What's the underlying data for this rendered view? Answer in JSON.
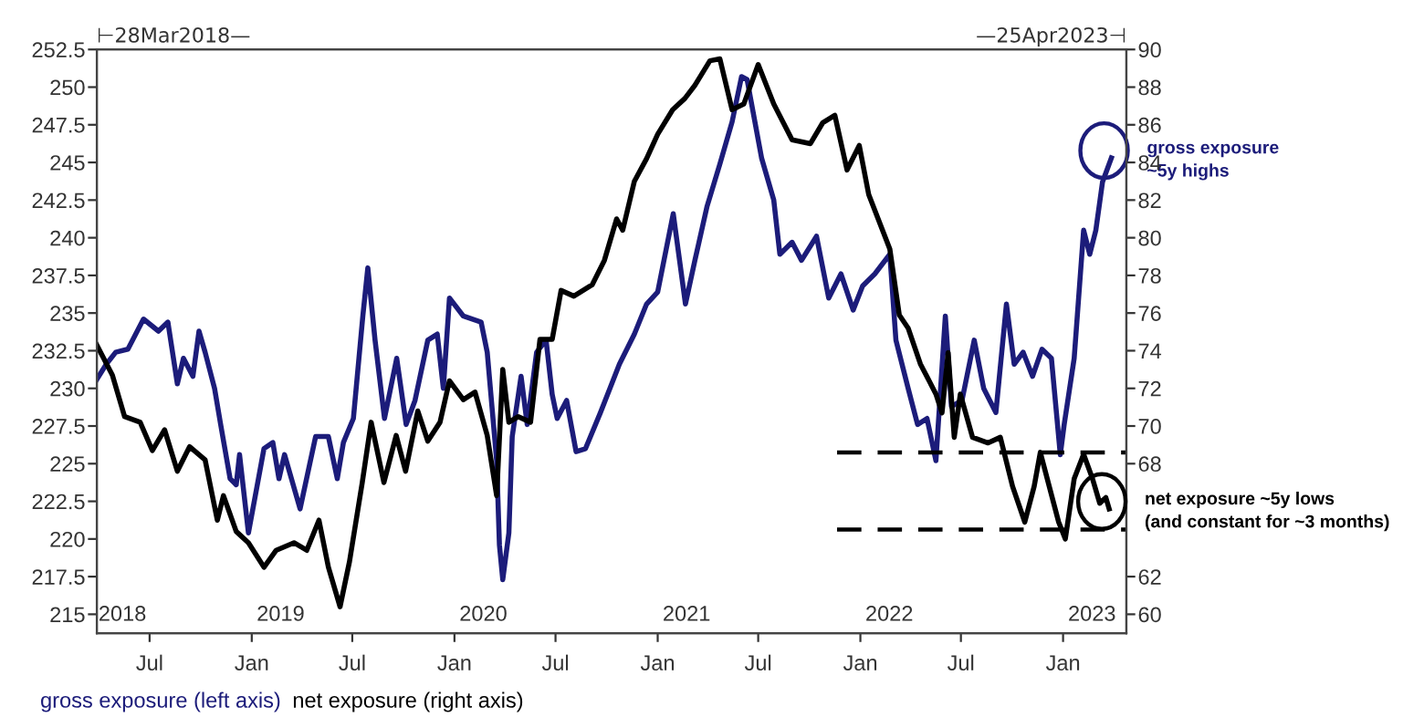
{
  "chart_data": {
    "type": "line",
    "xlim": [
      "2018-03-28",
      "2023-04-25"
    ],
    "xticks": [
      {
        "value": "2018-07-01",
        "label": "Jul"
      },
      {
        "value": "2019-01-01",
        "label": "Jan"
      },
      {
        "value": "2019-07-01",
        "label": "Jul"
      },
      {
        "value": "2020-01-01",
        "label": "Jan"
      },
      {
        "value": "2020-07-01",
        "label": "Jul"
      },
      {
        "value": "2021-01-01",
        "label": "Jan"
      },
      {
        "value": "2021-07-01",
        "label": "Jul"
      },
      {
        "value": "2022-01-01",
        "label": "Jan"
      },
      {
        "value": "2022-07-01",
        "label": "Jul"
      },
      {
        "value": "2023-01-01",
        "label": "Jan"
      }
    ],
    "ylim": [
      213.75,
      252.5
    ],
    "yticks": [
      215,
      217.5,
      220,
      222.5,
      225,
      227.5,
      230,
      232.5,
      235,
      237.5,
      240,
      242.5,
      245,
      247.5,
      250,
      252.5
    ],
    "y2lim": [
      59,
      90
    ],
    "y2ticks": [
      60,
      62,
      68,
      70,
      72,
      74,
      76,
      78,
      80,
      82,
      84,
      86,
      88,
      90
    ],
    "x2lim": [
      "2018-03-28",
      "2023-04-25"
    ],
    "x2ticks": [
      {
        "value": "2018-05-13",
        "label": "2018"
      },
      {
        "value": "2019-02-22",
        "label": "2019"
      },
      {
        "value": "2020-02-22",
        "label": "2020"
      },
      {
        "value": "2021-02-22",
        "label": "2021"
      },
      {
        "value": "2022-02-22",
        "label": "2022"
      },
      {
        "value": "2023-02-22",
        "label": "2023"
      }
    ],
    "legend": "bottom left",
    "grid": false,
    "series": [
      {
        "name": "gross exposure (left axis)",
        "color": "#1c1c7a",
        "x": [
          "2018-03-28",
          "2018-04-14",
          "2018-05-01",
          "2018-05-23",
          "2018-06-20",
          "2018-07-17",
          "2018-08-03",
          "2018-08-20",
          "2018-08-31",
          "2018-09-17",
          "2018-09-28",
          "2018-10-09",
          "2018-10-26",
          "2018-11-06",
          "2018-11-23",
          "2018-12-04",
          "2018-12-10",
          "2018-12-26",
          "2019-01-23",
          "2019-02-08",
          "2019-02-19",
          "2019-03-01",
          "2019-03-29",
          "2019-04-26",
          "2019-05-19",
          "2019-06-04",
          "2019-06-15",
          "2019-07-03",
          "2019-07-20",
          "2019-07-29",
          "2019-08-11",
          "2019-08-28",
          "2019-09-19",
          "2019-10-06",
          "2019-10-22",
          "2019-11-14",
          "2019-12-01",
          "2019-12-12",
          "2019-12-23",
          "2020-01-17",
          "2020-02-18",
          "2020-02-29",
          "2020-03-17",
          "2020-03-22",
          "2020-03-28",
          "2020-04-08",
          "2020-04-14",
          "2020-04-30",
          "2020-05-11",
          "2020-05-28",
          "2020-06-14",
          "2020-06-25",
          "2020-07-04",
          "2020-07-21",
          "2020-08-07",
          "2020-08-24",
          "2020-09-20",
          "2020-10-07",
          "2020-10-24",
          "2020-11-20",
          "2020-12-12",
          "2021-01-01",
          "2021-01-29",
          "2021-02-20",
          "2021-03-09",
          "2021-03-31",
          "2021-04-23",
          "2021-05-15",
          "2021-06-01",
          "2021-06-11",
          "2021-06-22",
          "2021-07-07",
          "2021-07-29",
          "2021-08-09",
          "2021-08-31",
          "2021-09-17",
          "2021-10-14",
          "2021-11-05",
          "2021-11-27",
          "2021-12-19",
          "2022-01-05",
          "2022-01-27",
          "2022-02-23",
          "2022-03-06",
          "2022-03-28",
          "2022-04-14",
          "2022-05-01",
          "2022-05-17",
          "2022-06-03",
          "2022-06-14",
          "2022-07-03",
          "2022-07-25",
          "2022-08-11",
          "2022-09-02",
          "2022-09-21",
          "2022-10-05",
          "2022-10-21",
          "2022-11-07",
          "2022-11-24",
          "2022-12-11",
          "2022-12-27",
          "2023-01-03",
          "2023-01-21",
          "2023-02-07",
          "2023-02-18",
          "2023-03-01",
          "2023-03-13",
          "2023-03-29"
        ],
        "values": [
          230.6,
          231.6,
          232.4,
          232.6,
          234.6,
          233.8,
          234.4,
          230.3,
          232,
          230.8,
          233.8,
          232.4,
          230,
          227.6,
          224,
          223.6,
          225.6,
          220.4,
          226,
          226.4,
          224,
          225.6,
          222,
          226.8,
          226.8,
          224,
          226.4,
          228,
          234.8,
          238,
          233.2,
          228,
          232,
          227.6,
          229.2,
          233.2,
          233.6,
          230,
          236,
          234.8,
          234.4,
          232.4,
          225.2,
          219.6,
          217.3,
          220.4,
          226.8,
          230.8,
          227.6,
          232.4,
          233.2,
          229.6,
          228,
          229.2,
          225.8,
          226,
          228.4,
          230,
          231.6,
          233.6,
          235.6,
          236.4,
          241.6,
          235.6,
          238.5,
          242.1,
          244.9,
          247.7,
          250.7,
          250.5,
          248.3,
          245.3,
          242.5,
          238.9,
          239.7,
          238.5,
          240.1,
          236,
          237.6,
          235.2,
          236.8,
          237.6,
          238.9,
          233.2,
          230,
          227.6,
          228,
          225.2,
          234.8,
          228.8,
          229.2,
          233.2,
          230,
          228.4,
          235.6,
          231.6,
          232.4,
          230.8,
          232.6,
          232,
          225.6,
          227.6,
          232,
          240.5,
          238.9,
          240.5,
          243.7,
          245.3
        ]
      },
      {
        "name": "net exposure (right axis)",
        "color": "#000000",
        "axis": "y2",
        "x": [
          "2018-03-28",
          "2018-04-25",
          "2018-05-17",
          "2018-06-14",
          "2018-07-06",
          "2018-07-28",
          "2018-08-20",
          "2018-09-11",
          "2018-10-09",
          "2018-10-31",
          "2018-11-11",
          "2018-12-04",
          "2018-12-26",
          "2019-01-23",
          "2019-02-14",
          "2019-03-18",
          "2019-04-10",
          "2019-05-02",
          "2019-05-19",
          "2019-06-09",
          "2019-06-26",
          "2019-07-19",
          "2019-08-04",
          "2019-08-27",
          "2019-09-18",
          "2019-10-05",
          "2019-10-27",
          "2019-11-14",
          "2019-12-06",
          "2019-12-23",
          "2020-01-17",
          "2020-02-07",
          "2020-02-29",
          "2020-03-17",
          "2020-03-28",
          "2020-04-08",
          "2020-04-25",
          "2020-05-17",
          "2020-06-03",
          "2020-06-25",
          "2020-07-11",
          "2020-08-03",
          "2020-09-05",
          "2020-09-27",
          "2020-10-19",
          "2020-10-30",
          "2020-11-20",
          "2020-12-12",
          "2021-01-01",
          "2021-01-28",
          "2021-02-19",
          "2021-03-09",
          "2021-04-05",
          "2021-04-23",
          "2021-05-15",
          "2021-06-05",
          "2021-07-01",
          "2021-07-29",
          "2021-08-31",
          "2021-10-03",
          "2021-10-25",
          "2021-11-16",
          "2021-12-08",
          "2021-12-30",
          "2022-01-16",
          "2022-02-02",
          "2022-02-23",
          "2022-03-12",
          "2022-03-28",
          "2022-04-19",
          "2022-05-17",
          "2022-05-28",
          "2022-06-08",
          "2022-06-19",
          "2022-06-30",
          "2022-07-22",
          "2022-08-19",
          "2022-09-10",
          "2022-10-02",
          "2022-10-24",
          "2022-11-10",
          "2022-11-21",
          "2022-12-07",
          "2022-12-24",
          "2023-01-05",
          "2023-01-21",
          "2023-02-07",
          "2023-02-23",
          "2023-03-08",
          "2023-03-19",
          "2023-03-25"
        ],
        "values": [
          74.3,
          72.7,
          70.5,
          70.2,
          68.7,
          69.8,
          67.6,
          68.9,
          68.2,
          65,
          66.3,
          64.4,
          63.8,
          62.5,
          63.4,
          63.8,
          63.4,
          65,
          62.5,
          60.4,
          62.8,
          67,
          70.2,
          67,
          69.5,
          67.6,
          70.8,
          69.2,
          70.2,
          72.4,
          71.4,
          71.8,
          69.5,
          66.3,
          73,
          70.2,
          70.5,
          70.2,
          74.6,
          74.6,
          77.2,
          76.9,
          77.5,
          78.8,
          81,
          80.4,
          83,
          84.2,
          85.5,
          86.8,
          87.4,
          88.1,
          89.4,
          89.5,
          86.8,
          87.1,
          89.2,
          87.1,
          85.2,
          85,
          86.1,
          86.5,
          83.6,
          84.9,
          82.3,
          81,
          79.4,
          75.9,
          75.2,
          73.3,
          71.7,
          70.7,
          73.9,
          69.4,
          71.7,
          69.4,
          69.1,
          69.4,
          66.8,
          64.9,
          66.8,
          68.6,
          66.8,
          64.9,
          64,
          67.2,
          68.5,
          67.2,
          65.9,
          66.2,
          65.6
        ]
      },
      {
        "type": "line",
        "color": "#000000",
        "axis": "y2",
        "line_style": "dashed",
        "x": [
          "2021-11-20",
          "2023-04-25"
        ],
        "values": [
          68.6,
          68.6
        ]
      },
      {
        "type": "line",
        "color": "#000000",
        "axis": "y2",
        "line_style": "dashed",
        "x": [
          "2021-11-20",
          "2023-04-25"
        ],
        "values": [
          64.5,
          64.5
        ]
      }
    ],
    "annotations": [
      "⊢28Mar2018—",
      "—25Apr2023⊣",
      {
        "text": "gross exposure\n~5y highs",
        "x": "2023-03-29",
        "y": 245.3
      },
      {
        "text": "net exposure ~5y lows\n(and constant for ~3 months)",
        "x": "2023-03-25",
        "y": 222
      }
    ]
  }
}
